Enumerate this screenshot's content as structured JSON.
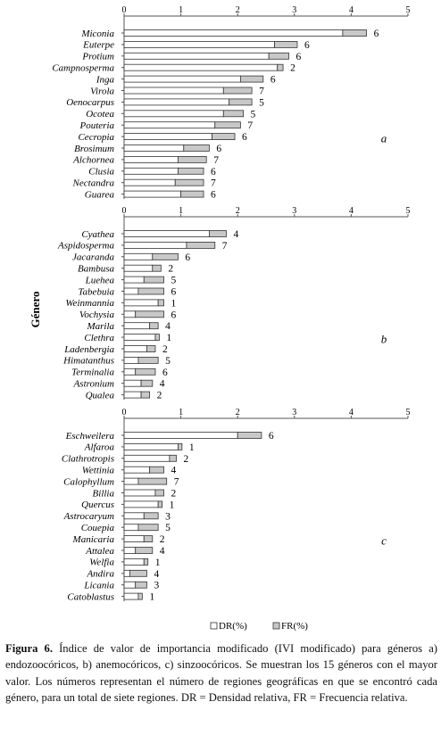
{
  "chart_data": [
    {
      "type": "bar",
      "stacked": true,
      "orientation": "horizontal",
      "panel_label": "a",
      "xlim": [
        0,
        5
      ],
      "xticks": [
        0,
        1,
        2,
        3,
        4,
        5
      ],
      "categories": [
        "Miconia",
        "Euterpe",
        "Protium",
        "Campnosperma",
        "Inga",
        "Virola",
        "Oenocarpus",
        "Ocotea",
        "Pouteria",
        "Cecropia",
        "Brosimum",
        "Alchornea",
        "Clusia",
        "Nectandra",
        "Guarea"
      ],
      "series": [
        {
          "name": "DR(%)",
          "values": [
            3.85,
            2.65,
            2.55,
            2.7,
            2.05,
            1.75,
            1.85,
            1.75,
            1.6,
            1.55,
            1.05,
            0.95,
            0.95,
            0.9,
            1.0
          ]
        },
        {
          "name": "FR(%)",
          "values": [
            0.42,
            0.4,
            0.35,
            0.1,
            0.4,
            0.5,
            0.4,
            0.35,
            0.45,
            0.4,
            0.45,
            0.5,
            0.45,
            0.5,
            0.4
          ]
        }
      ],
      "region_counts": [
        "6",
        "6",
        "6",
        "2",
        "6",
        "7",
        "5",
        "5",
        "7",
        "6",
        "6",
        "7",
        "6",
        "7",
        "6"
      ]
    },
    {
      "type": "bar",
      "stacked": true,
      "orientation": "horizontal",
      "panel_label": "b",
      "xlim": [
        0,
        5
      ],
      "xticks": [
        0,
        1,
        2,
        3,
        4,
        5
      ],
      "categories": [
        "Cyathea",
        "Aspidosperma",
        "Jacaranda",
        "Bambusa",
        "Luehea",
        "Tabebuia",
        "Weinmannia",
        "Vochysia",
        "Marila",
        "Clethra",
        "Ladenbergia",
        "Himatanthus",
        "Terminalia",
        "Astronium",
        "Qualea"
      ],
      "series": [
        {
          "name": "DR(%)",
          "values": [
            1.5,
            1.1,
            0.5,
            0.5,
            0.35,
            0.25,
            0.6,
            0.2,
            0.45,
            0.55,
            0.4,
            0.25,
            0.2,
            0.3,
            0.3
          ]
        },
        {
          "name": "FR(%)",
          "values": [
            0.3,
            0.5,
            0.45,
            0.15,
            0.35,
            0.45,
            0.1,
            0.5,
            0.15,
            0.07,
            0.15,
            0.35,
            0.35,
            0.2,
            0.15
          ]
        }
      ],
      "region_counts": [
        "4",
        "7",
        "6",
        "2",
        "5",
        "6",
        "1",
        "6",
        "4",
        "1",
        "2",
        "5",
        "6",
        "4",
        "2"
      ]
    },
    {
      "type": "bar",
      "stacked": true,
      "orientation": "horizontal",
      "panel_label": "c",
      "xlim": [
        0,
        5
      ],
      "xticks": [
        0,
        1,
        2,
        3,
        4,
        5
      ],
      "categories": [
        "Eschweilera",
        "Alfaroa",
        "Clathrotropis",
        "Wettinia",
        "Calophyllum",
        "Billia",
        "Quercus",
        "Astrocaryum",
        "Couepia",
        "Manicaria",
        "Attalea",
        "Welfia",
        "Andira",
        "Licania",
        "Catoblastus"
      ],
      "series": [
        {
          "name": "DR(%)",
          "values": [
            2.0,
            0.95,
            0.8,
            0.45,
            0.25,
            0.55,
            0.6,
            0.35,
            0.25,
            0.35,
            0.2,
            0.35,
            0.1,
            0.2,
            0.25
          ]
        },
        {
          "name": "FR(%)",
          "values": [
            0.42,
            0.07,
            0.12,
            0.25,
            0.5,
            0.15,
            0.07,
            0.25,
            0.35,
            0.15,
            0.3,
            0.07,
            0.3,
            0.2,
            0.07
          ]
        }
      ],
      "region_counts": [
        "6",
        "1",
        "2",
        "4",
        "7",
        "2",
        "1",
        "3",
        "5",
        "2",
        "4",
        "1",
        "4",
        "3",
        "1"
      ]
    }
  ],
  "y_axis_label": "Género",
  "legend": {
    "dr_label": "DR(%)",
    "fr_label": "FR(%)",
    "dr_color": "#ffffff",
    "fr_color": "#c8c8c8"
  },
  "caption": {
    "label": "Figura 6.",
    "text": " Índice de valor de importancia modificado (IVI modificado) para géneros a) endozoocóricos, b) anemocóricos, c) sinzoocóricos. Se muestran los 15 géneros con el mayor valor. Los números representan el número de regiones geográficas en que se encontró cada género, para un total de siete regiones. DR = Densidad relativa, FR = Frecuencia relativa."
  }
}
